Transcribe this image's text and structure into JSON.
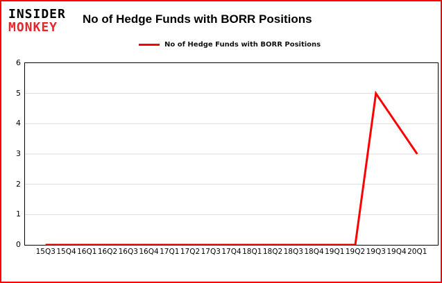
{
  "logo": {
    "line1": "INSIDER",
    "line2": "MONKEY"
  },
  "header": {
    "title": "No of Hedge Funds with BORR Positions"
  },
  "legend": {
    "label": "No of Hedge Funds with BORR Positions",
    "color": "#ff0000"
  },
  "colors": {
    "border": "#ff0000",
    "line": "#ff0000",
    "logo_red": "#e8262d",
    "gridline": "#dddddd"
  },
  "chart_data": {
    "type": "line",
    "title": "No of Hedge Funds with BORR Positions",
    "categories": [
      "15Q3",
      "15Q4",
      "16Q1",
      "16Q2",
      "16Q3",
      "16Q4",
      "17Q1",
      "17Q2",
      "17Q3",
      "17Q4",
      "18Q1",
      "18Q2",
      "18Q3",
      "18Q4",
      "19Q1",
      "19Q2",
      "19Q3",
      "19Q4",
      "20Q1"
    ],
    "values": [
      0,
      0,
      0,
      0,
      0,
      0,
      0,
      0,
      0,
      0,
      0,
      0,
      0,
      0,
      0,
      0,
      5,
      4,
      3
    ],
    "xlabel": "",
    "ylabel": "",
    "ylim": [
      0,
      6
    ],
    "yticks": [
      0,
      1,
      2,
      3,
      4,
      5,
      6
    ],
    "grid": true,
    "legend_position": "top-left"
  }
}
